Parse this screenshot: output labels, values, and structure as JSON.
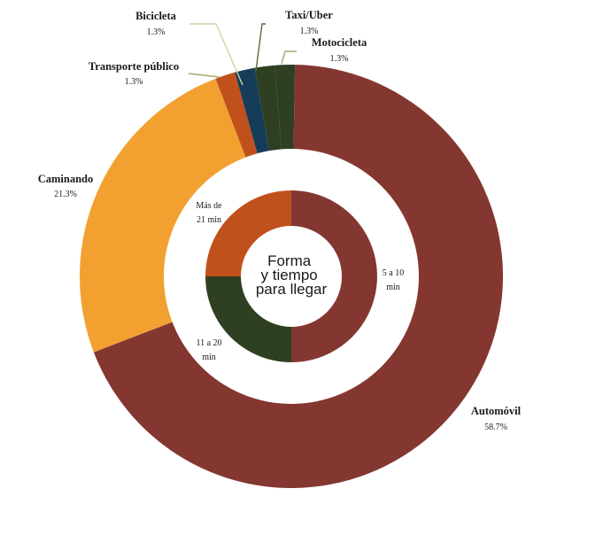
{
  "chart_data": {
    "type": "pie",
    "center_title_lines": [
      "Forma",
      "y tiempo",
      "para llegar"
    ],
    "outer_ring": {
      "slices": [
        {
          "label": "Motocicleta",
          "value_text": "1.3%",
          "value": 1.3,
          "color": "#2f3f22"
        },
        {
          "label": "Automóvil",
          "value_text": "58.7%",
          "value": 58.7,
          "color": "#843731"
        },
        {
          "label": "Caminando",
          "value_text": "21.3%",
          "value": 21.3,
          "color": "#f2a131"
        },
        {
          "label": "Transporte público",
          "value_text": "1.3%",
          "value": 1.3,
          "color": "#c1511c"
        },
        {
          "label": "Bicicleta",
          "value_text": "1.3%",
          "value": 1.3,
          "color": "#153d59"
        },
        {
          "label": "Taxi/Uber",
          "value_text": "1.3%",
          "value": 1.3,
          "color": "#2f3f22"
        }
      ]
    },
    "inner_ring": {
      "slices": [
        {
          "label_lines": [
            "5 a 10",
            "min"
          ],
          "value": 50,
          "color": "#843731"
        },
        {
          "label_lines": [
            "11 a 20",
            "min"
          ],
          "value": 25,
          "color": "#2f3f22"
        },
        {
          "label_lines": [
            "Más de",
            "21 min"
          ],
          "value": 25,
          "color": "#c1511c"
        }
      ]
    }
  }
}
